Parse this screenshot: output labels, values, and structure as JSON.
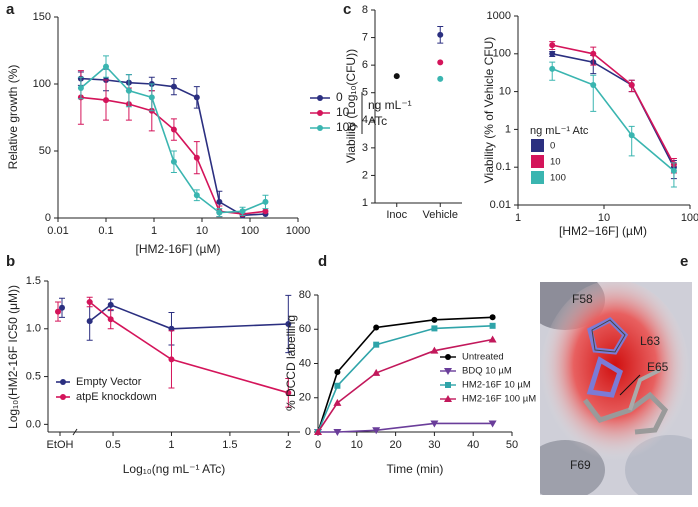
{
  "chart_data": [
    {
      "panel": "a",
      "type": "line",
      "xscale": "log",
      "xlabel": "[HM2-16F] (µM)",
      "ylabel": "Relative growth (%)",
      "x": [
        0.03,
        0.1,
        0.3,
        0.9,
        2.6,
        7.8,
        23,
        70,
        210
      ],
      "xlim": [
        0.01,
        1000
      ],
      "xticks": [
        0.01,
        0.1,
        1,
        10,
        100,
        1000
      ],
      "ylim": [
        0,
        150
      ],
      "yticks": [
        0,
        50,
        100,
        150
      ],
      "legend_title": [
        "ng mL⁻¹",
        "ATc"
      ],
      "series": [
        {
          "name": "0",
          "color": "#2b2f80",
          "values": [
            104,
            103,
            101,
            100,
            98,
            90,
            12,
            2,
            3
          ],
          "errors": [
            5,
            8,
            6,
            5,
            6,
            8,
            8,
            null,
            null
          ]
        },
        {
          "name": "10",
          "color": "#d4145a",
          "values": [
            90,
            88,
            85,
            80,
            66,
            45,
            5,
            3,
            5
          ],
          "errors": [
            20,
            15,
            12,
            15,
            8,
            12,
            4,
            null,
            null
          ]
        },
        {
          "name": "100",
          "color": "#3ab5b0",
          "values": [
            97,
            113,
            95,
            90,
            42,
            17,
            4,
            5,
            12
          ],
          "errors": [
            8,
            8,
            12,
            10,
            8,
            4,
            3,
            3,
            5
          ]
        }
      ]
    },
    {
      "panel": "c",
      "type": "scatter",
      "ylabel": "Viability (Log₁₀(CFU))",
      "categories": [
        "Inoc",
        "Vehicle"
      ],
      "ylim": [
        1,
        8
      ],
      "yticks": [
        1,
        2,
        3,
        4,
        5,
        6,
        7,
        8
      ],
      "series": [
        {
          "color": "#111111",
          "values": [
            5.6,
            null
          ],
          "errors": [
            null,
            null
          ]
        },
        {
          "color": "#2b2f80",
          "values": [
            null,
            7.1
          ],
          "errors": [
            null,
            0.3
          ]
        },
        {
          "color": "#d4145a",
          "values": [
            null,
            6.1
          ],
          "errors": [
            null,
            null
          ]
        },
        {
          "color": "#3ab5b0",
          "values": [
            null,
            5.5
          ],
          "errors": [
            null,
            null
          ]
        }
      ]
    },
    {
      "type": "line",
      "xscale": "log",
      "yscale": "log",
      "xlabel": "[HM2−16F] (µM)",
      "ylabel": "Viability (% of Vehicle CFU)",
      "x": [
        2.5,
        7.5,
        21,
        65
      ],
      "xlim": [
        1,
        100
      ],
      "xticks": [
        1,
        10,
        100
      ],
      "ylim": [
        0.01,
        1000
      ],
      "yticks": [
        0.01,
        0.1,
        1,
        10,
        100,
        1000
      ],
      "legend_title": "ng mL⁻¹ Atc",
      "series": [
        {
          "name": "0",
          "color": "#2b2f80",
          "values": [
            100,
            60,
            15,
            0.1
          ],
          "errors": [
            15,
            30,
            5,
            0.05
          ]
        },
        {
          "name": "10",
          "color": "#d4145a",
          "values": [
            170,
            100,
            15,
            0.12
          ],
          "errors": [
            40,
            50,
            5,
            0.05
          ]
        },
        {
          "name": "100",
          "color": "#3ab5b0",
          "values": [
            40,
            15,
            0.7,
            0.08
          ],
          "errors": [
            20,
            12,
            0.5,
            0.05
          ]
        }
      ]
    },
    {
      "panel": "b",
      "type": "line",
      "xlabel": "Log₁₀(ng mL⁻¹ ATc)",
      "ylabel": "Log₁₀(HM2-16F IC50 (μM))",
      "control_label": "EtOH",
      "x": [
        0.3,
        0.48,
        1,
        2
      ],
      "xlim": [
        0.2,
        2.1
      ],
      "xticks": [
        0.5,
        1,
        1.5,
        2
      ],
      "ylim": [
        -0.08,
        1.5
      ],
      "yticks": [
        {
          "value": 0,
          "label": "0.0"
        },
        0.5,
        {
          "value": 1,
          "label": "1.0"
        },
        1.5
      ],
      "series": [
        {
          "name": "Empty Vector",
          "color": "#2b2f80",
          "control_value": 1.22,
          "control_error": 0.1,
          "values": [
            1.08,
            1.25,
            1.0,
            1.05
          ],
          "errors": [
            0.2,
            0.06,
            0.17,
            0.3
          ]
        },
        {
          "name": "atpE knockdown",
          "color": "#d4145a",
          "control_value": 1.18,
          "control_error": 0.1,
          "values": [
            1.28,
            1.1,
            0.68,
            0.33
          ],
          "errors": [
            0.05,
            0.1,
            0.3,
            0.15
          ]
        }
      ]
    },
    {
      "panel": "d",
      "type": "line",
      "xlabel": "Time (min)",
      "ylabel": "% DCCD labelling",
      "x": [
        0,
        5,
        15,
        30,
        45
      ],
      "xlim": [
        0,
        50
      ],
      "xticks": [
        0,
        10,
        20,
        30,
        40,
        50
      ],
      "ylim": [
        0,
        80
      ],
      "yticks": [
        0,
        20,
        40,
        60,
        80
      ],
      "series": [
        {
          "name": "Untreated",
          "color": "#000000",
          "marker": "circle",
          "values": [
            0,
            35,
            61,
            65.5,
            67
          ]
        },
        {
          "name": "BDQ  10 µM",
          "color": "#6a3d9a",
          "marker": "triangle-down",
          "values": [
            0,
            0,
            1,
            5,
            5
          ]
        },
        {
          "name": "HM2-16F 10 µM",
          "color": "#2fa4a9",
          "marker": "square",
          "values": [
            0,
            27,
            51,
            60.5,
            62
          ]
        },
        {
          "name": "HM2-16F 100 µM",
          "color": "#c2185b",
          "marker": "triangle-up",
          "values": [
            0,
            17,
            34.5,
            47.5,
            54
          ]
        }
      ]
    }
  ],
  "image_panel": {
    "panel": "e",
    "labels": [
      "F58",
      "L63",
      "E65",
      "F69"
    ]
  }
}
